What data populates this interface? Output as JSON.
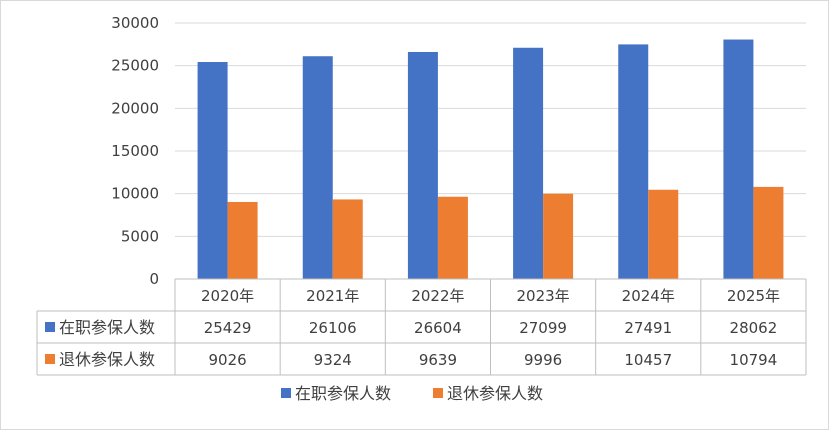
{
  "chart_data": {
    "type": "bar",
    "categories": [
      "2020年",
      "2021年",
      "2022年",
      "2023年",
      "2024年",
      "2025年"
    ],
    "series": [
      {
        "name": "在职参保人数",
        "values": [
          25429,
          26106,
          26604,
          27099,
          27491,
          28062
        ],
        "color": "#4472C4"
      },
      {
        "name": "退休参保人数",
        "values": [
          9026,
          9324,
          9639,
          9996,
          10457,
          10794
        ],
        "color": "#ED7D31"
      }
    ],
    "ylim": [
      0,
      30000
    ],
    "yticks": [
      0,
      5000,
      10000,
      15000,
      20000,
      25000,
      30000
    ],
    "grid": true,
    "data_table": true,
    "legend_position": "bottom",
    "title": "",
    "xlabel": "",
    "ylabel": ""
  }
}
